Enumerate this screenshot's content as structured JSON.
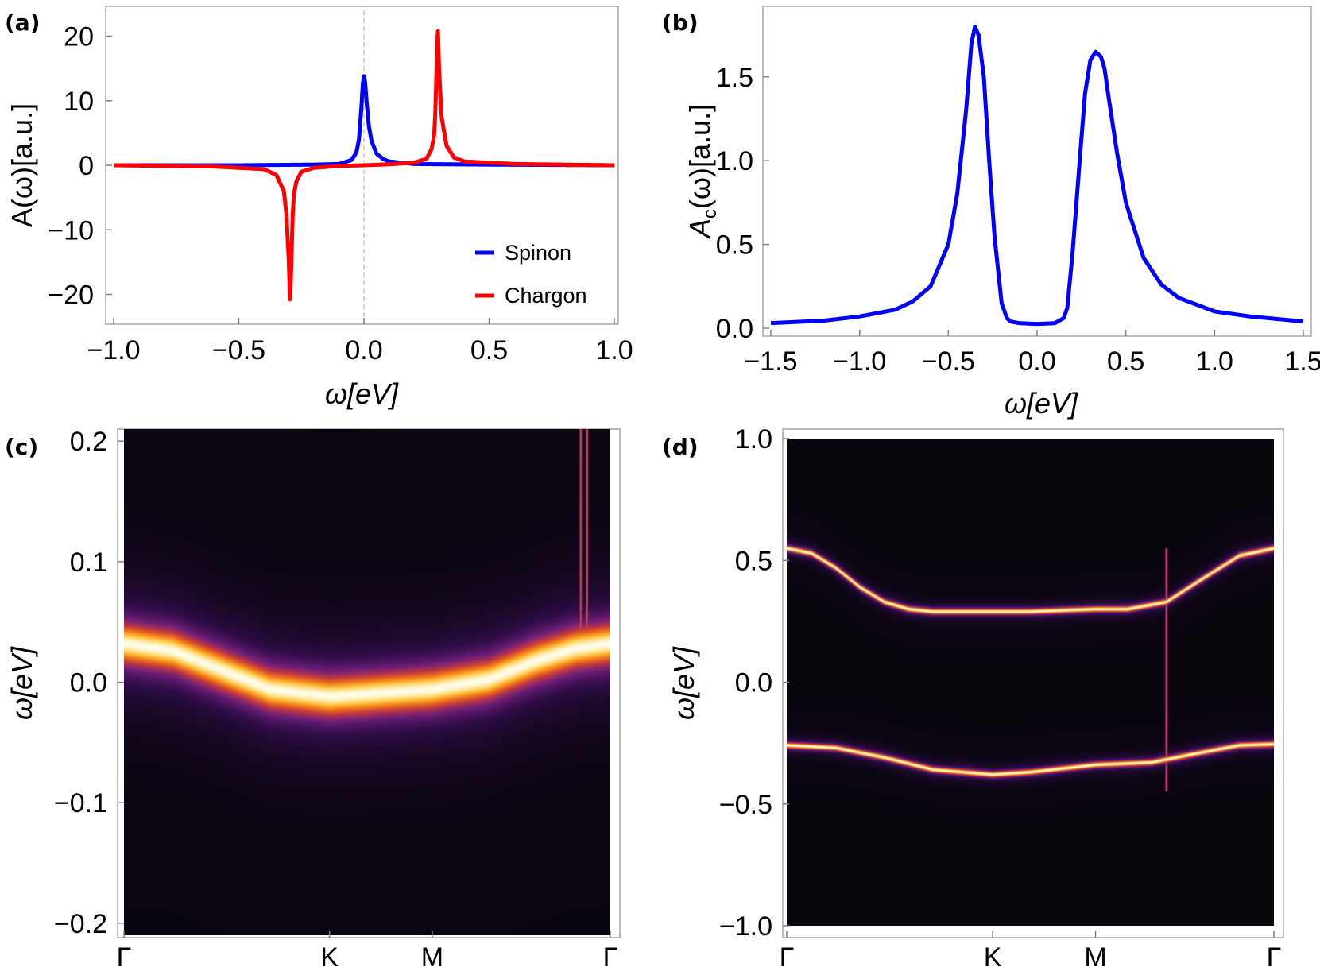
{
  "colors": {
    "spinon": "#0000ff",
    "chargon": "#ff0000",
    "frame": "#a6a6a6",
    "zero_line": "#c8c8c8"
  },
  "chart_data": [
    {
      "id": "a",
      "panel_label": "(a)",
      "type": "line",
      "xlabel": "ω[eV]",
      "ylabel": "A(ω)[a.u.]",
      "xlim": [
        -1.0,
        1.0
      ],
      "ylim": [
        -24,
        24
      ],
      "xticks": [
        -1.0,
        -0.5,
        0.0,
        0.5,
        1.0
      ],
      "xtick_labels": [
        "−1.0",
        "−0.5",
        "0.0",
        "0.5",
        "1.0"
      ],
      "yticks": [
        -20,
        -10,
        0,
        10,
        20
      ],
      "ytick_labels": [
        "−20",
        "−10",
        "0",
        "10",
        "20"
      ],
      "legend_position": "bottom-right",
      "series": [
        {
          "name": "Spinon",
          "color": "#0000ff",
          "x": [
            -1.0,
            -0.5,
            -0.2,
            -0.1,
            -0.05,
            -0.03,
            -0.02,
            -0.01,
            -0.005,
            0.0,
            0.005,
            0.01,
            0.02,
            0.03,
            0.05,
            0.08,
            0.1,
            0.2,
            0.5,
            1.0
          ],
          "y": [
            0.0,
            0.0,
            0.1,
            0.2,
            0.8,
            2.0,
            4.0,
            9.0,
            12.5,
            13.8,
            12.8,
            10.0,
            6.0,
            3.8,
            1.8,
            0.9,
            0.6,
            0.2,
            0.1,
            0.0
          ]
        },
        {
          "name": "Chargon",
          "color": "#ff0000",
          "x": [
            -1.0,
            -0.6,
            -0.4,
            -0.35,
            -0.32,
            -0.31,
            -0.3,
            -0.295,
            -0.29,
            -0.285,
            -0.28,
            -0.27,
            -0.25,
            -0.2,
            -0.1,
            0.0,
            0.1,
            0.2,
            0.25,
            0.27,
            0.28,
            0.285,
            0.29,
            0.295,
            0.3,
            0.31,
            0.33,
            0.36,
            0.4,
            0.6,
            1.0
          ],
          "y": [
            0.0,
            -0.2,
            -0.6,
            -1.5,
            -4.0,
            -7.5,
            -15.0,
            -21.5,
            -15.0,
            -8.0,
            -4.5,
            -2.5,
            -1.0,
            -0.4,
            -0.1,
            0.0,
            0.15,
            0.4,
            1.0,
            2.5,
            4.5,
            8.0,
            15.0,
            21.5,
            15.0,
            7.5,
            3.0,
            1.2,
            0.6,
            0.2,
            0.0
          ]
        }
      ]
    },
    {
      "id": "b",
      "panel_label": "(b)",
      "type": "line",
      "xlabel": "ω[eV]",
      "ylabel_main": "A",
      "ylabel_sub": "c",
      "ylabel_rest": "(ω)[a.u.]",
      "xlim": [
        -1.5,
        1.5
      ],
      "ylim": [
        0.0,
        1.85
      ],
      "xticks": [
        -1.5,
        -1.0,
        -0.5,
        0.0,
        0.5,
        1.0,
        1.5
      ],
      "xtick_labels": [
        "−1.5",
        "−1.0",
        "−0.5",
        "0.0",
        "0.5",
        "1.0",
        "1.5"
      ],
      "yticks": [
        0.0,
        0.5,
        1.0,
        1.5
      ],
      "ytick_labels": [
        "0.0",
        "0.5",
        "1.0",
        "1.5"
      ],
      "series": [
        {
          "name": "A_c",
          "color": "#0000ff",
          "x": [
            -1.5,
            -1.2,
            -1.0,
            -0.8,
            -0.7,
            -0.6,
            -0.5,
            -0.45,
            -0.4,
            -0.37,
            -0.35,
            -0.33,
            -0.3,
            -0.27,
            -0.24,
            -0.2,
            -0.17,
            -0.15,
            -0.1,
            0.0,
            0.1,
            0.15,
            0.17,
            0.2,
            0.24,
            0.27,
            0.3,
            0.33,
            0.36,
            0.38,
            0.4,
            0.45,
            0.5,
            0.6,
            0.7,
            0.8,
            1.0,
            1.2,
            1.5
          ],
          "y": [
            0.03,
            0.045,
            0.07,
            0.11,
            0.16,
            0.25,
            0.5,
            0.8,
            1.3,
            1.7,
            1.8,
            1.75,
            1.5,
            1.0,
            0.55,
            0.15,
            0.06,
            0.04,
            0.03,
            0.025,
            0.03,
            0.06,
            0.12,
            0.45,
            1.0,
            1.4,
            1.6,
            1.65,
            1.62,
            1.55,
            1.4,
            1.05,
            0.75,
            0.42,
            0.26,
            0.18,
            0.1,
            0.07,
            0.04
          ]
        }
      ]
    },
    {
      "id": "c",
      "panel_label": "(c)",
      "type": "heatmap",
      "ylabel": "ω[eV]",
      "ylim": [
        -0.21,
        0.21
      ],
      "yticks": [
        -0.2,
        -0.1,
        0.0,
        0.1,
        0.2
      ],
      "ytick_labels": [
        "−0.2",
        "−0.1",
        "0.0",
        "0.1",
        "0.2"
      ],
      "k_ticks": [
        0.0,
        0.4226,
        0.6339,
        1.0
      ],
      "k_tick_labels": [
        "Γ",
        "K",
        "M",
        "Γ"
      ],
      "band_width_eV": 0.018,
      "bands": [
        {
          "k": [
            0.0,
            0.1,
            0.2,
            0.3,
            0.4226,
            0.5,
            0.6339,
            0.75,
            0.85,
            0.93,
            1.0
          ],
          "energy": [
            0.032,
            0.026,
            0.01,
            -0.006,
            -0.012,
            -0.01,
            -0.006,
            0.002,
            0.018,
            0.028,
            0.032
          ]
        }
      ],
      "artifact_k": [
        0.94,
        0.953
      ],
      "artifact_energy_range": [
        0.04,
        0.21
      ]
    },
    {
      "id": "d",
      "panel_label": "(d)",
      "type": "heatmap",
      "ylabel": "ω[eV]",
      "ylim": [
        -1.0,
        1.0
      ],
      "yticks": [
        -1.0,
        -0.5,
        0.0,
        0.5,
        1.0
      ],
      "ytick_labels": [
        "−1.0",
        "−0.5",
        "0.0",
        "0.5",
        "1.0"
      ],
      "k_ticks": [
        0.0,
        0.4226,
        0.6339,
        1.0
      ],
      "k_tick_labels": [
        "Γ",
        "K",
        "M",
        "Γ"
      ],
      "band_width_eV": 0.012,
      "bands": [
        {
          "k": [
            0.0,
            0.05,
            0.1,
            0.15,
            0.2,
            0.25,
            0.3,
            0.4226,
            0.5,
            0.6339,
            0.7,
            0.78,
            0.85,
            0.93,
            1.0
          ],
          "energy": [
            0.55,
            0.53,
            0.47,
            0.39,
            0.33,
            0.3,
            0.29,
            0.29,
            0.29,
            0.3,
            0.3,
            0.33,
            0.42,
            0.52,
            0.55
          ]
        },
        {
          "k": [
            0.0,
            0.1,
            0.2,
            0.3,
            0.4226,
            0.5,
            0.6339,
            0.75,
            0.85,
            0.93,
            1.0
          ],
          "energy": [
            -0.26,
            -0.27,
            -0.31,
            -0.36,
            -0.38,
            -0.37,
            -0.34,
            -0.33,
            -0.29,
            -0.26,
            -0.255
          ]
        }
      ],
      "artifact_k": [
        0.78
      ],
      "artifact_energy_range": [
        -0.45,
        0.55
      ]
    }
  ],
  "legend": {
    "spinon_label": "Spinon",
    "chargon_label": "Chargon"
  }
}
